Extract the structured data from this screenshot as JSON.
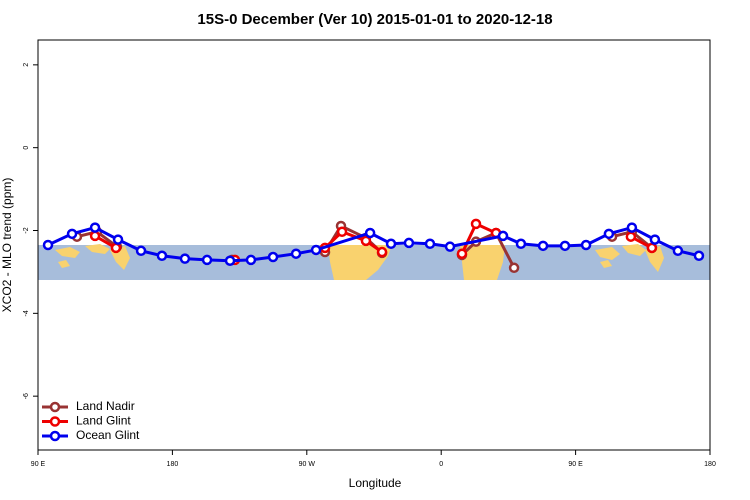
{
  "chart_data": {
    "type": "line",
    "title": "15S-0 December (Ver 10)   2015-01-01 to 2020-12-18",
    "x_label": "Longitude",
    "y_label": "XCO2 - MLO trend (ppm)",
    "xlim": [
      90,
      540
    ],
    "xticks": [
      {
        "value": 90,
        "label": "90 E"
      },
      180,
      {
        "value": 270,
        "label": "90 W"
      },
      {
        "value": 360,
        "label": "0"
      },
      {
        "value": 450,
        "label": "90 E"
      },
      180
    ],
    "ylim": [
      -7.3,
      2.6
    ],
    "yticks": [
      2,
      0,
      -2,
      -4,
      -6
    ],
    "legend": "bottom-left",
    "series": [
      {
        "name": "Land Nadir",
        "color": "#993333",
        "x": [
          116.1,
          129.5,
          142.9,
          null,
          219.9,
          null,
          282.2,
          292.9,
          309.6,
          320.4,
          null,
          373.9,
          383.3,
          396.7,
          408.8,
          null,
          474.4,
          487.7,
          501.1
        ],
        "values": [
          -2.15,
          -2.03,
          -2.39,
          null,
          -2.71,
          null,
          -2.52,
          -1.89,
          -2.18,
          -2.54,
          null,
          -2.59,
          -2.27,
          -2.06,
          -2.9,
          null,
          -2.15,
          -2.03,
          -2.42
        ]
      },
      {
        "name": "Land Glint",
        "color": "#ee0000",
        "x": [
          128.2,
          142.2,
          null,
          221.9,
          null,
          282.2,
          293.6,
          309.6,
          320.4,
          null,
          373.9,
          383.3,
          396.7,
          null,
          487.0,
          501.1
        ],
        "values": [
          -2.13,
          -2.42,
          null,
          -2.71,
          null,
          -2.42,
          -2.03,
          -2.25,
          -2.52,
          null,
          -2.56,
          -1.84,
          -2.06,
          null,
          -2.15,
          -2.42
        ]
      },
      {
        "name": "Ocean Glint",
        "color": "#0000ee",
        "x": [
          96.7,
          112.8,
          128.2,
          143.6,
          159.0,
          173.0,
          188.4,
          203.2,
          218.6,
          232.6,
          247.4,
          262.8,
          276.2,
          312.4,
          326.4,
          338.4,
          352.5,
          365.9,
          401.4,
          413.4,
          428.2,
          442.9,
          457.0,
          472.3,
          487.7,
          503.1,
          518.5,
          532.6
        ],
        "values": [
          -2.35,
          -2.08,
          -1.93,
          -2.22,
          -2.49,
          -2.61,
          -2.68,
          -2.71,
          -2.73,
          -2.71,
          -2.64,
          -2.56,
          -2.47,
          -2.06,
          -2.32,
          -2.3,
          -2.32,
          -2.39,
          -2.13,
          -2.32,
          -2.37,
          -2.37,
          -2.35,
          -2.08,
          -1.93,
          -2.22,
          -2.49,
          -2.61
        ]
      }
    ]
  }
}
